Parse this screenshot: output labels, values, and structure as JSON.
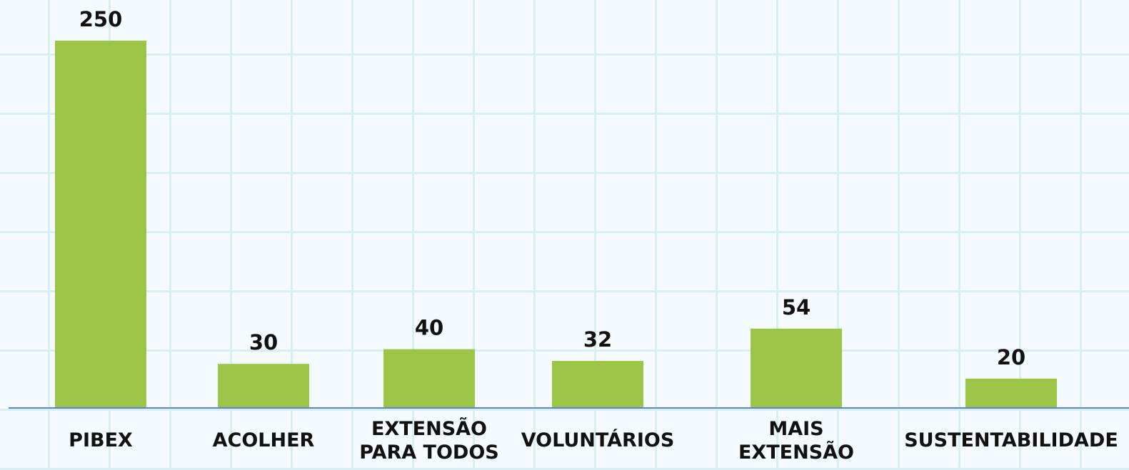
{
  "chart_data": {
    "type": "bar",
    "categories": [
      "PIBEX",
      "ACOLHER",
      "EXTENSÃO\nPARA TODOS",
      "VOLUNTÁRIOS",
      "MAIS\nEXTENSÃO",
      "SUSTENTABILIDADE"
    ],
    "values": [
      250,
      30,
      40,
      32,
      54,
      20
    ],
    "color": "#9cc447"
  }
}
